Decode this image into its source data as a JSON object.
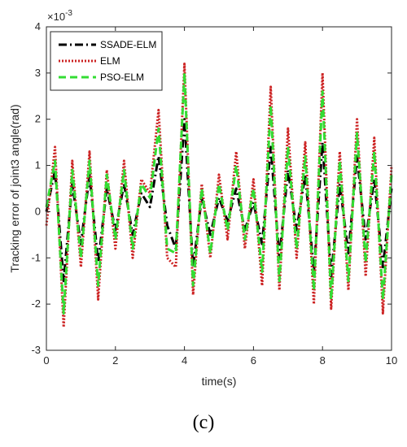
{
  "chart_data": {
    "type": "line",
    "xlabel": "time(s)",
    "ylabel": "Tracking error of joint3 angle(rad)",
    "xlim": [
      0,
      10
    ],
    "ylim": [
      -3,
      4
    ],
    "y_multiplier_label": "×10",
    "y_multiplier_exp": "-3",
    "x_ticks": [
      "0",
      "2",
      "4",
      "6",
      "8",
      "10"
    ],
    "y_ticks": [
      "-3",
      "-2",
      "-1",
      "0",
      "1",
      "2",
      "3",
      "4"
    ],
    "grid": false,
    "legend_position": "top-left",
    "x": [
      0.0,
      0.25,
      0.5,
      0.75,
      1.0,
      1.25,
      1.5,
      1.75,
      2.0,
      2.25,
      2.5,
      2.75,
      3.0,
      3.25,
      3.5,
      3.75,
      4.0,
      4.25,
      4.5,
      4.75,
      5.0,
      5.25,
      5.5,
      5.75,
      6.0,
      6.25,
      6.5,
      6.75,
      7.0,
      7.25,
      7.5,
      7.75,
      8.0,
      8.25,
      8.5,
      8.75,
      9.0,
      9.25,
      9.5,
      9.75,
      10.0
    ],
    "series": [
      {
        "name": "SSADE-ELM",
        "color": "#000000",
        "style": "dashdot",
        "values": [
          0.0,
          0.9,
          -1.5,
          0.6,
          -0.7,
          0.8,
          -1.1,
          0.5,
          -0.4,
          0.6,
          -0.5,
          0.4,
          0.1,
          1.2,
          -0.3,
          -0.8,
          2.0,
          -1.2,
          0.3,
          -0.5,
          0.3,
          -0.2,
          0.5,
          -0.4,
          0.2,
          -0.7,
          1.4,
          -1.0,
          0.9,
          -0.4,
          0.8,
          -1.3,
          1.5,
          -1.4,
          0.6,
          -0.9,
          1.2,
          -0.6,
          0.7,
          -1.2,
          0.5
        ]
      },
      {
        "name": "ELM",
        "color": "#cc2222",
        "style": "dotted",
        "values": [
          -0.3,
          1.4,
          -2.5,
          1.1,
          -1.2,
          1.3,
          -1.9,
          0.9,
          -0.8,
          1.1,
          -1.0,
          0.7,
          0.4,
          2.2,
          -1.0,
          -1.2,
          3.2,
          -1.8,
          0.6,
          -1.0,
          0.8,
          -0.6,
          1.3,
          -0.8,
          0.7,
          -1.6,
          2.7,
          -1.7,
          1.8,
          -1.0,
          1.5,
          -2.0,
          3.0,
          -2.1,
          1.3,
          -1.7,
          2.0,
          -1.4,
          1.6,
          -2.2,
          1.0
        ]
      },
      {
        "name": "PSO-ELM",
        "color": "#33dd33",
        "style": "dashed",
        "values": [
          0.1,
          1.1,
          -2.2,
          0.9,
          -1.0,
          1.1,
          -1.6,
          0.8,
          -0.6,
          0.9,
          -0.8,
          0.6,
          0.3,
          1.8,
          -0.8,
          -0.9,
          3.0,
          -1.6,
          0.5,
          -0.9,
          0.6,
          -0.4,
          1.0,
          -0.6,
          0.5,
          -1.3,
          2.3,
          -1.5,
          1.4,
          -0.8,
          1.2,
          -1.7,
          2.6,
          -1.9,
          1.1,
          -1.5,
          1.7,
          -1.1,
          1.3,
          -1.9,
          0.8
        ]
      }
    ]
  },
  "caption": "(c)"
}
